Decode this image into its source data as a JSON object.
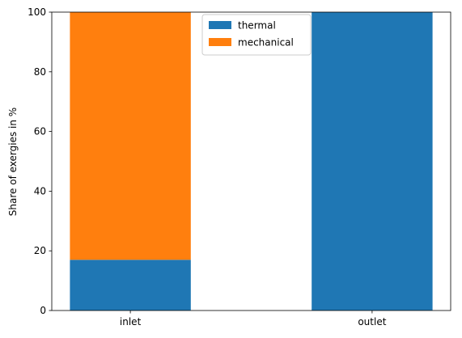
{
  "chart_data": {
    "type": "bar",
    "stacked": true,
    "categories": [
      "inlet",
      "outlet"
    ],
    "series": [
      {
        "name": "thermal",
        "values": [
          17,
          100
        ],
        "color": "#1f77b4"
      },
      {
        "name": "mechanical",
        "values": [
          83,
          0
        ],
        "color": "#ff7f0e"
      }
    ],
    "title": "",
    "xlabel": "",
    "ylabel": "Share of exergies in %",
    "ylim": [
      0,
      100
    ],
    "yticks": [
      0,
      20,
      40,
      60,
      80,
      100
    ],
    "grid": false,
    "legend_position": "top-center"
  }
}
